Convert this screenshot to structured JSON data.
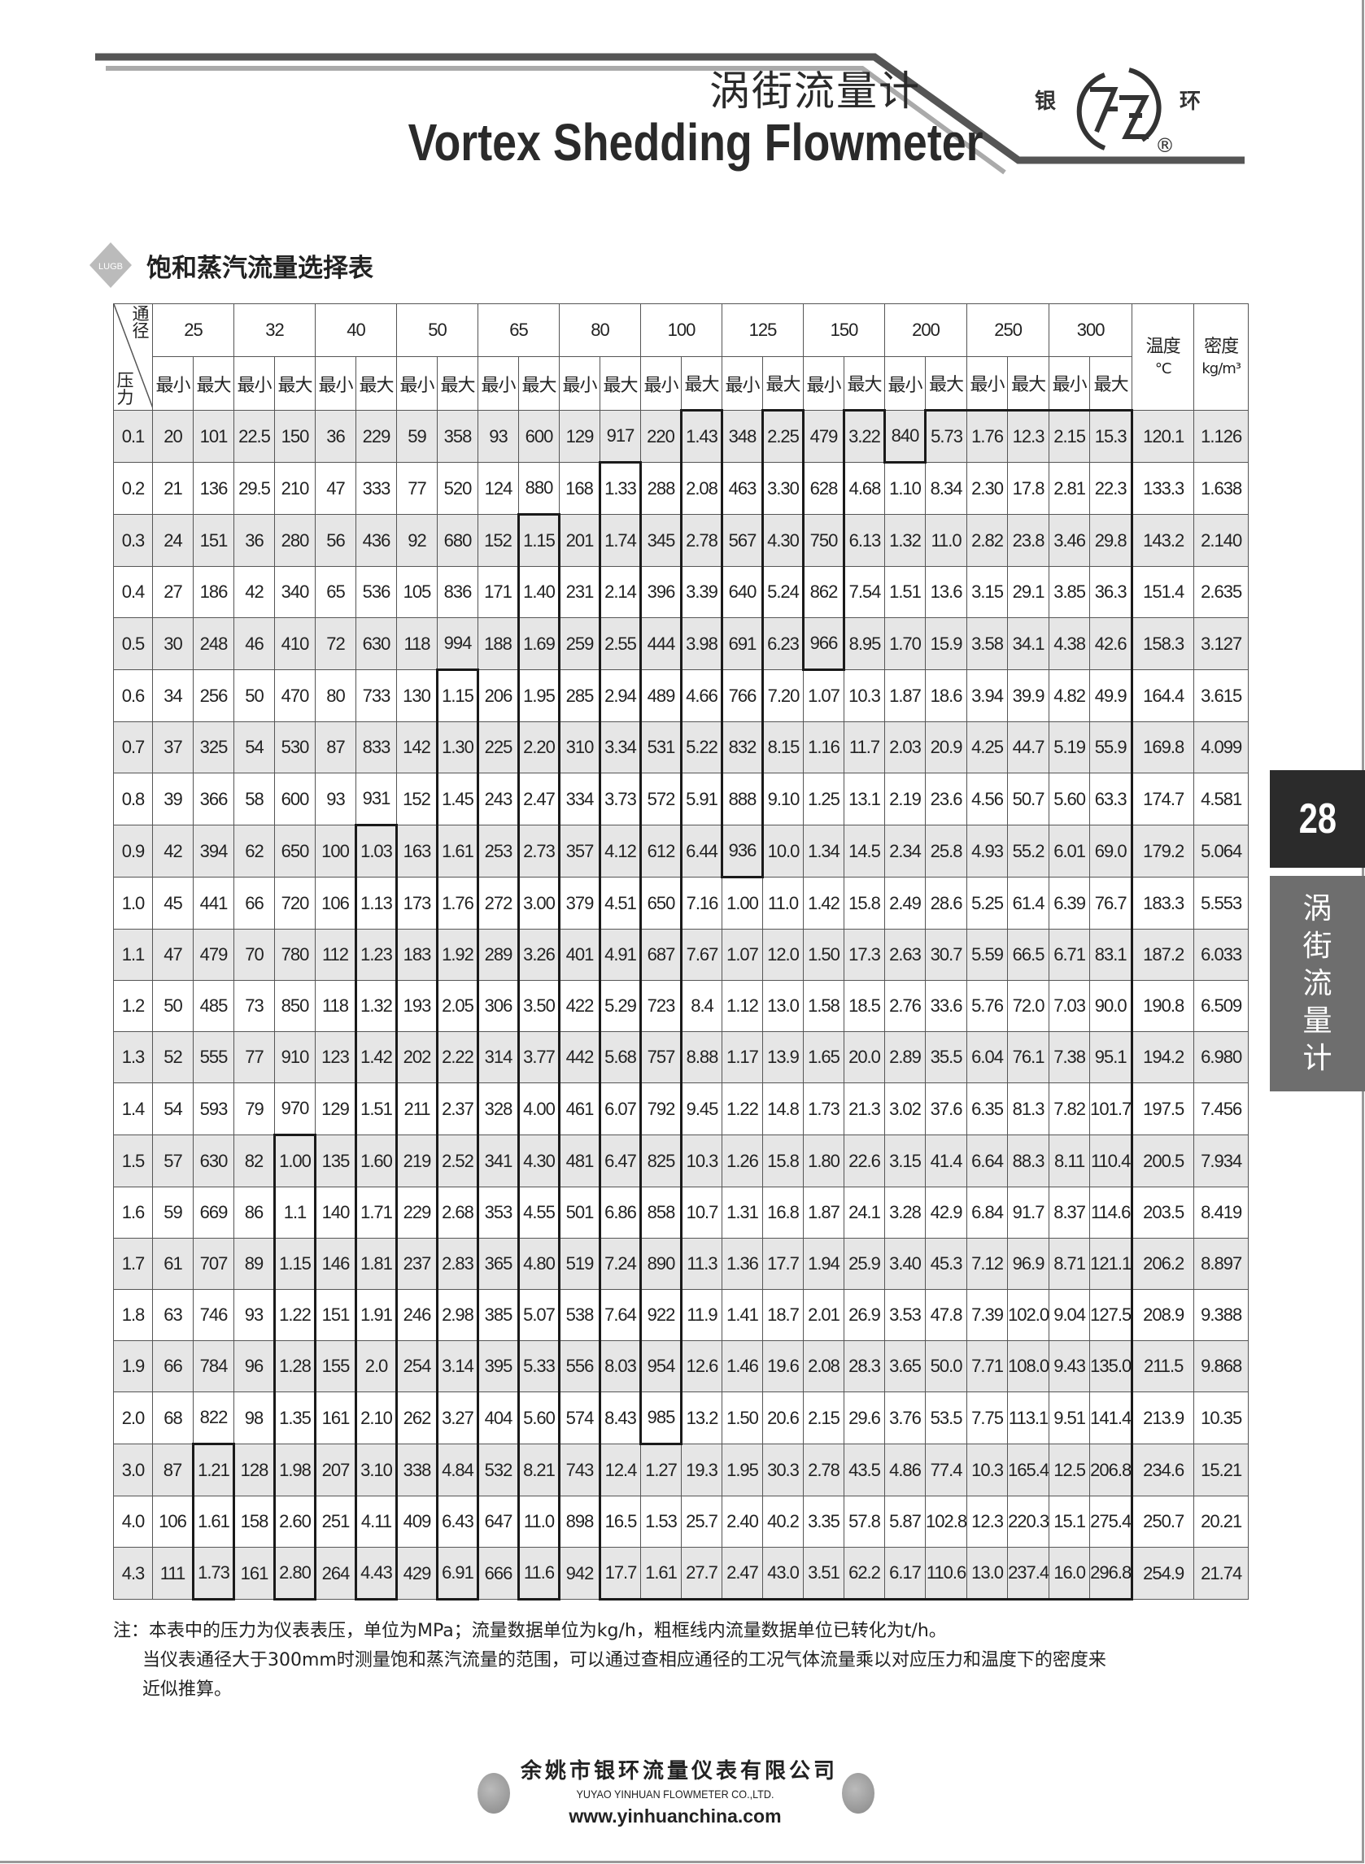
{
  "header": {
    "title_cn": "涡街流量计",
    "title_en": "Vortex Shedding Flowmeter",
    "logo_left": "银",
    "logo_right": "环",
    "registered_mark": "®"
  },
  "section": {
    "badge_text": "LUGB",
    "title": "饱和蒸汽流量选择表"
  },
  "side_tab": {
    "page_number": "28",
    "label_chars": [
      "涡",
      "街",
      "流",
      "量",
      "计"
    ]
  },
  "table": {
    "corner_top": "通径",
    "corner_bottom": "压力",
    "diameters": [
      "25",
      "32",
      "40",
      "50",
      "65",
      "80",
      "100",
      "125",
      "150",
      "200",
      "250",
      "300"
    ],
    "min_label": "最小",
    "max_label": "最大",
    "temp_header": "温度",
    "temp_unit": "°C",
    "density_header": "密度",
    "density_unit": "kg/m³",
    "th_start_pressure": [
      null,
      "3.0",
      null,
      "1.5",
      null,
      "0.9",
      null,
      "0.6",
      null,
      "0.3",
      null,
      "0.2",
      "3.0",
      "0.1",
      "1.0",
      "0.1",
      "0.6",
      "0.1",
      "0.2",
      "0.1",
      "0.1",
      "0.1",
      "0.1",
      "0.1"
    ],
    "rows": [
      [
        "0.1",
        "20",
        "101",
        "22.5",
        "150",
        "36",
        "229",
        "59",
        "358",
        "93",
        "600",
        "129",
        "917",
        "220",
        "1.43",
        "348",
        "2.25",
        "479",
        "3.22",
        "840",
        "5.73",
        "1.76",
        "12.3",
        "2.15",
        "15.3",
        "120.1",
        "1.126"
      ],
      [
        "0.2",
        "21",
        "136",
        "29.5",
        "210",
        "47",
        "333",
        "77",
        "520",
        "124",
        "880",
        "168",
        "1.33",
        "288",
        "2.08",
        "463",
        "3.30",
        "628",
        "4.68",
        "1.10",
        "8.34",
        "2.30",
        "17.8",
        "2.81",
        "22.3",
        "133.3",
        "1.638"
      ],
      [
        "0.3",
        "24",
        "151",
        "36",
        "280",
        "56",
        "436",
        "92",
        "680",
        "152",
        "1.15",
        "201",
        "1.74",
        "345",
        "2.78",
        "567",
        "4.30",
        "750",
        "6.13",
        "1.32",
        "11.0",
        "2.82",
        "23.8",
        "3.46",
        "29.8",
        "143.2",
        "2.140"
      ],
      [
        "0.4",
        "27",
        "186",
        "42",
        "340",
        "65",
        "536",
        "105",
        "836",
        "171",
        "1.40",
        "231",
        "2.14",
        "396",
        "3.39",
        "640",
        "5.24",
        "862",
        "7.54",
        "1.51",
        "13.6",
        "3.15",
        "29.1",
        "3.85",
        "36.3",
        "151.4",
        "2.635"
      ],
      [
        "0.5",
        "30",
        "248",
        "46",
        "410",
        "72",
        "630",
        "118",
        "994",
        "188",
        "1.69",
        "259",
        "2.55",
        "444",
        "3.98",
        "691",
        "6.23",
        "966",
        "8.95",
        "1.70",
        "15.9",
        "3.58",
        "34.1",
        "4.38",
        "42.6",
        "158.3",
        "3.127"
      ],
      [
        "0.6",
        "34",
        "256",
        "50",
        "470",
        "80",
        "733",
        "130",
        "1.15",
        "206",
        "1.95",
        "285",
        "2.94",
        "489",
        "4.66",
        "766",
        "7.20",
        "1.07",
        "10.3",
        "1.87",
        "18.6",
        "3.94",
        "39.9",
        "4.82",
        "49.9",
        "164.4",
        "3.615"
      ],
      [
        "0.7",
        "37",
        "325",
        "54",
        "530",
        "87",
        "833",
        "142",
        "1.30",
        "225",
        "2.20",
        "310",
        "3.34",
        "531",
        "5.22",
        "832",
        "8.15",
        "1.16",
        "11.7",
        "2.03",
        "20.9",
        "4.25",
        "44.7",
        "5.19",
        "55.9",
        "169.8",
        "4.099"
      ],
      [
        "0.8",
        "39",
        "366",
        "58",
        "600",
        "93",
        "931",
        "152",
        "1.45",
        "243",
        "2.47",
        "334",
        "3.73",
        "572",
        "5.91",
        "888",
        "9.10",
        "1.25",
        "13.1",
        "2.19",
        "23.6",
        "4.56",
        "50.7",
        "5.60",
        "63.3",
        "174.7",
        "4.581"
      ],
      [
        "0.9",
        "42",
        "394",
        "62",
        "650",
        "100",
        "1.03",
        "163",
        "1.61",
        "253",
        "2.73",
        "357",
        "4.12",
        "612",
        "6.44",
        "936",
        "10.0",
        "1.34",
        "14.5",
        "2.34",
        "25.8",
        "4.93",
        "55.2",
        "6.01",
        "69.0",
        "179.2",
        "5.064"
      ],
      [
        "1.0",
        "45",
        "441",
        "66",
        "720",
        "106",
        "1.13",
        "173",
        "1.76",
        "272",
        "3.00",
        "379",
        "4.51",
        "650",
        "7.16",
        "1.00",
        "11.0",
        "1.42",
        "15.8",
        "2.49",
        "28.6",
        "5.25",
        "61.4",
        "6.39",
        "76.7",
        "183.3",
        "5.553"
      ],
      [
        "1.1",
        "47",
        "479",
        "70",
        "780",
        "112",
        "1.23",
        "183",
        "1.92",
        "289",
        "3.26",
        "401",
        "4.91",
        "687",
        "7.67",
        "1.07",
        "12.0",
        "1.50",
        "17.3",
        "2.63",
        "30.7",
        "5.59",
        "66.5",
        "6.71",
        "83.1",
        "187.2",
        "6.033"
      ],
      [
        "1.2",
        "50",
        "485",
        "73",
        "850",
        "118",
        "1.32",
        "193",
        "2.05",
        "306",
        "3.50",
        "422",
        "5.29",
        "723",
        "8.4",
        "1.12",
        "13.0",
        "1.58",
        "18.5",
        "2.76",
        "33.6",
        "5.76",
        "72.0",
        "7.03",
        "90.0",
        "190.8",
        "6.509"
      ],
      [
        "1.3",
        "52",
        "555",
        "77",
        "910",
        "123",
        "1.42",
        "202",
        "2.22",
        "314",
        "3.77",
        "442",
        "5.68",
        "757",
        "8.88",
        "1.17",
        "13.9",
        "1.65",
        "20.0",
        "2.89",
        "35.5",
        "6.04",
        "76.1",
        "7.38",
        "95.1",
        "194.2",
        "6.980"
      ],
      [
        "1.4",
        "54",
        "593",
        "79",
        "970",
        "129",
        "1.51",
        "211",
        "2.37",
        "328",
        "4.00",
        "461",
        "6.07",
        "792",
        "9.45",
        "1.22",
        "14.8",
        "1.73",
        "21.3",
        "3.02",
        "37.6",
        "6.35",
        "81.3",
        "7.82",
        "101.7",
        "197.5",
        "7.456"
      ],
      [
        "1.5",
        "57",
        "630",
        "82",
        "1.00",
        "135",
        "1.60",
        "219",
        "2.52",
        "341",
        "4.30",
        "481",
        "6.47",
        "825",
        "10.3",
        "1.26",
        "15.8",
        "1.80",
        "22.6",
        "3.15",
        "41.4",
        "6.64",
        "88.3",
        "8.11",
        "110.4",
        "200.5",
        "7.934"
      ],
      [
        "1.6",
        "59",
        "669",
        "86",
        "1.1",
        "140",
        "1.71",
        "229",
        "2.68",
        "353",
        "4.55",
        "501",
        "6.86",
        "858",
        "10.7",
        "1.31",
        "16.8",
        "1.87",
        "24.1",
        "3.28",
        "42.9",
        "6.84",
        "91.7",
        "8.37",
        "114.6",
        "203.5",
        "8.419"
      ],
      [
        "1.7",
        "61",
        "707",
        "89",
        "1.15",
        "146",
        "1.81",
        "237",
        "2.83",
        "365",
        "4.80",
        "519",
        "7.24",
        "890",
        "11.3",
        "1.36",
        "17.7",
        "1.94",
        "25.9",
        "3.40",
        "45.3",
        "7.12",
        "96.9",
        "8.71",
        "121.1",
        "206.2",
        "8.897"
      ],
      [
        "1.8",
        "63",
        "746",
        "93",
        "1.22",
        "151",
        "1.91",
        "246",
        "2.98",
        "385",
        "5.07",
        "538",
        "7.64",
        "922",
        "11.9",
        "1.41",
        "18.7",
        "2.01",
        "26.9",
        "3.53",
        "47.8",
        "7.39",
        "102.0",
        "9.04",
        "127.5",
        "208.9",
        "9.388"
      ],
      [
        "1.9",
        "66",
        "784",
        "96",
        "1.28",
        "155",
        "2.0",
        "254",
        "3.14",
        "395",
        "5.33",
        "556",
        "8.03",
        "954",
        "12.6",
        "1.46",
        "19.6",
        "2.08",
        "28.3",
        "3.65",
        "50.0",
        "7.71",
        "108.0",
        "9.43",
        "135.0",
        "211.5",
        "9.868"
      ],
      [
        "2.0",
        "68",
        "822",
        "98",
        "1.35",
        "161",
        "2.10",
        "262",
        "3.27",
        "404",
        "5.60",
        "574",
        "8.43",
        "985",
        "13.2",
        "1.50",
        "20.6",
        "2.15",
        "29.6",
        "3.76",
        "53.5",
        "7.75",
        "113.1",
        "9.51",
        "141.4",
        "213.9",
        "10.35"
      ],
      [
        "3.0",
        "87",
        "1.21",
        "128",
        "1.98",
        "207",
        "3.10",
        "338",
        "4.84",
        "532",
        "8.21",
        "743",
        "12.4",
        "1.27",
        "19.3",
        "1.95",
        "30.3",
        "2.78",
        "43.5",
        "4.86",
        "77.4",
        "10.3",
        "165.4",
        "12.5",
        "206.8",
        "234.6",
        "15.21"
      ],
      [
        "4.0",
        "106",
        "1.61",
        "158",
        "2.60",
        "251",
        "4.11",
        "409",
        "6.43",
        "647",
        "11.0",
        "898",
        "16.5",
        "1.53",
        "25.7",
        "2.40",
        "40.2",
        "3.35",
        "57.8",
        "5.87",
        "102.8",
        "12.3",
        "220.3",
        "15.1",
        "275.4",
        "250.7",
        "20.21"
      ],
      [
        "4.3",
        "111",
        "1.73",
        "161",
        "2.80",
        "264",
        "4.43",
        "429",
        "6.91",
        "666",
        "11.6",
        "942",
        "17.7",
        "1.61",
        "27.7",
        "2.47",
        "43.0",
        "3.51",
        "62.2",
        "6.17",
        "110.6",
        "13.0",
        "237.4",
        "16.0",
        "296.8",
        "254.9",
        "21.74"
      ]
    ]
  },
  "notes": {
    "line1": "注：本表中的压力为仪表表压，单位为MPa；流量数据单位为kg/h，粗框线内流量数据单位已转化为t/h。",
    "line2": "当仪表通径大于300mm时测量饱和蒸汽流量的范围，可以通过查相应通径的工况气体流量乘以对应压力和温度下的密度来",
    "line3": "近似推算。"
  },
  "footer": {
    "company_cn": "余姚市银环流量仪表有限公司",
    "company_en": "YUYAO YINHUAN FLOWMETER CO.,LTD.",
    "website": "www.yinhuanchina.com"
  },
  "colors": {
    "row_shade": "#e6e6e6",
    "page_tab": "#2b2b2b",
    "side_tab": "#6e6e6e"
  }
}
